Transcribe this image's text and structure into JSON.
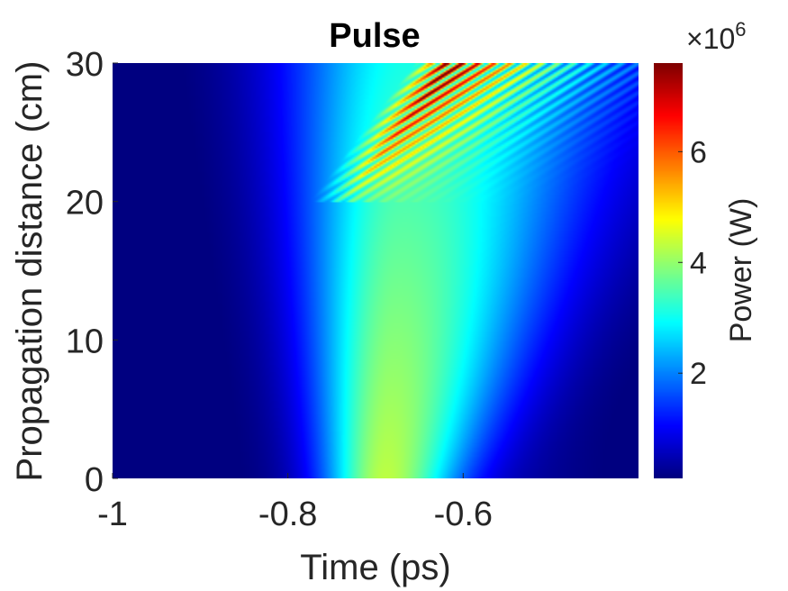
{
  "chart_data": {
    "type": "heatmap",
    "title": "Pulse",
    "xlabel": "Time (ps)",
    "ylabel": "Propagation distance (cm)",
    "xlim": [
      -1.0,
      -0.4
    ],
    "ylim": [
      0,
      30
    ],
    "x_ticks": [
      -1.0,
      -0.8,
      -0.6
    ],
    "x_tick_labels": [
      "-1",
      "-0.8",
      "-0.6"
    ],
    "y_ticks": [
      0,
      10,
      20,
      30
    ],
    "y_tick_labels": [
      "0",
      "10",
      "20",
      "30"
    ],
    "colorbar": {
      "label": "Power (W)",
      "exponent_label": "×10",
      "exponent": "6",
      "lim": [
        0.1,
        7.6
      ],
      "ticks": [
        2,
        4,
        6
      ],
      "tick_labels": [
        "2",
        "4",
        "6"
      ],
      "colormap": "jet"
    },
    "grid": false,
    "features": {
      "pulse_center_ps": -0.69,
      "peak_power_at_0cm_x1e6_W": 3.8,
      "peak_power_max_x1e6_W": 7.5,
      "fission_onset_cm": 20
    }
  },
  "colors": {
    "background": "#ffffff",
    "axis_text": "#262626",
    "title_text": "#000000"
  }
}
